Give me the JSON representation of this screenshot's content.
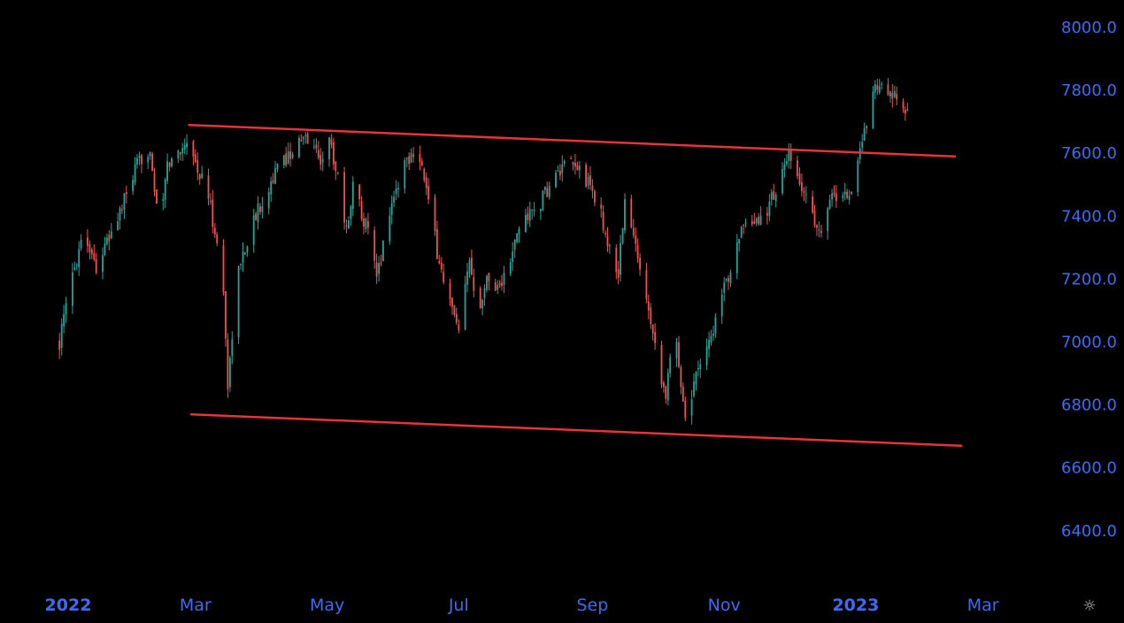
{
  "colors": {
    "background": "#000000",
    "up": "#26a69a",
    "down": "#ef5350",
    "trendline": "#e8323c",
    "axis_text": "#3d6cf2"
  },
  "settings": {
    "icon": "settings-icon",
    "glyph": "☼"
  },
  "chart_data": {
    "type": "candlestick",
    "y_axis": {
      "position": "right",
      "range": [
        6240,
        8080
      ],
      "ticks": [
        "8000.0",
        "7800.0",
        "7600.0",
        "7400.0",
        "7200.0",
        "7000.0",
        "6800.0",
        "6600.0",
        "6400.0"
      ],
      "tick_values": [
        8000,
        7800,
        7600,
        7400,
        7200,
        7000,
        6800,
        6600,
        6400
      ]
    },
    "x_axis": {
      "range": [
        "2022-01-01",
        "2023-03-15"
      ],
      "ticks": [
        {
          "label": "2022",
          "date": "2022-01-01",
          "major": true
        },
        {
          "label": "Mar",
          "date": "2022-03-01",
          "major": false
        },
        {
          "label": "May",
          "date": "2022-05-01",
          "major": false
        },
        {
          "label": "Jul",
          "date": "2022-07-01",
          "major": false
        },
        {
          "label": "Sep",
          "date": "2022-09-01",
          "major": false
        },
        {
          "label": "Nov",
          "date": "2022-11-01",
          "major": false
        },
        {
          "label": "2023",
          "date": "2023-01-01",
          "major": true
        },
        {
          "label": "Mar",
          "date": "2023-03-01",
          "major": false
        }
      ]
    },
    "series": {
      "start": "2021-12-28",
      "end": "2023-01-25",
      "close_path": [
        [
          "2021-12-28",
          7000
        ],
        [
          "2022-01-02",
          7180
        ],
        [
          "2022-01-08",
          7360
        ],
        [
          "2022-01-14",
          7240
        ],
        [
          "2022-01-20",
          7330
        ],
        [
          "2022-01-26",
          7430
        ],
        [
          "2022-02-02",
          7560
        ],
        [
          "2022-02-08",
          7620
        ],
        [
          "2022-02-12",
          7350
        ],
        [
          "2022-02-16",
          7560
        ],
        [
          "2022-02-22",
          7610
        ],
        [
          "2022-02-26",
          7660
        ],
        [
          "2022-03-02",
          7540
        ],
        [
          "2022-03-06",
          7500
        ],
        [
          "2022-03-10",
          7350
        ],
        [
          "2022-03-14",
          7160
        ],
        [
          "2022-03-16",
          6860
        ],
        [
          "2022-03-20",
          7200
        ],
        [
          "2022-03-26",
          7350
        ],
        [
          "2022-04-02",
          7470
        ],
        [
          "2022-04-08",
          7550
        ],
        [
          "2022-04-16",
          7620
        ],
        [
          "2022-04-22",
          7650
        ],
        [
          "2022-04-28",
          7580
        ],
        [
          "2022-05-02",
          7640
        ],
        [
          "2022-05-06",
          7530
        ],
        [
          "2022-05-10",
          7350
        ],
        [
          "2022-05-13",
          7500
        ],
        [
          "2022-05-20",
          7350
        ],
        [
          "2022-05-24",
          7200
        ],
        [
          "2022-05-30",
          7420
        ],
        [
          "2022-06-06",
          7570
        ],
        [
          "2022-06-12",
          7630
        ],
        [
          "2022-06-16",
          7480
        ],
        [
          "2022-06-22",
          7250
        ],
        [
          "2022-06-28",
          7100
        ],
        [
          "2022-07-01",
          7020
        ],
        [
          "2022-07-06",
          7260
        ],
        [
          "2022-07-10",
          7110
        ],
        [
          "2022-07-14",
          7200
        ],
        [
          "2022-07-20",
          7180
        ],
        [
          "2022-07-24",
          7230
        ],
        [
          "2022-07-30",
          7390
        ],
        [
          "2022-08-06",
          7420
        ],
        [
          "2022-08-14",
          7520
        ],
        [
          "2022-08-20",
          7560
        ],
        [
          "2022-08-26",
          7550
        ],
        [
          "2022-09-01",
          7480
        ],
        [
          "2022-09-05",
          7400
        ],
        [
          "2022-09-09",
          7290
        ],
        [
          "2022-09-13",
          7220
        ],
        [
          "2022-09-16",
          7450
        ],
        [
          "2022-09-21",
          7300
        ],
        [
          "2022-09-27",
          7120
        ],
        [
          "2022-10-01",
          6950
        ],
        [
          "2022-10-05",
          6830
        ],
        [
          "2022-10-09",
          7050
        ],
        [
          "2022-10-13",
          6820
        ],
        [
          "2022-10-15",
          6720
        ],
        [
          "2022-10-19",
          6920
        ],
        [
          "2022-10-25",
          7000
        ],
        [
          "2022-10-31",
          7140
        ],
        [
          "2022-11-04",
          7240
        ],
        [
          "2022-11-08",
          7350
        ],
        [
          "2022-11-14",
          7360
        ],
        [
          "2022-11-20",
          7410
        ],
        [
          "2022-11-26",
          7500
        ],
        [
          "2022-12-01",
          7590
        ],
        [
          "2022-12-05",
          7510
        ],
        [
          "2022-12-09",
          7470
        ],
        [
          "2022-12-15",
          7340
        ],
        [
          "2022-12-19",
          7450
        ],
        [
          "2022-12-25",
          7470
        ],
        [
          "2022-12-29",
          7470
        ],
        [
          "2023-01-02",
          7570
        ],
        [
          "2023-01-06",
          7700
        ],
        [
          "2023-01-10",
          7830
        ],
        [
          "2023-01-14",
          7790
        ],
        [
          "2023-01-20",
          7770
        ],
        [
          "2023-01-25",
          7730
        ]
      ]
    },
    "trendlines": [
      {
        "name": "upper",
        "from": [
          "2022-02-26",
          7690
        ],
        "to": [
          "2023-02-16",
          7590
        ]
      },
      {
        "name": "lower",
        "from": [
          "2022-02-27",
          6770
        ],
        "to": [
          "2023-02-19",
          6670
        ]
      }
    ]
  }
}
